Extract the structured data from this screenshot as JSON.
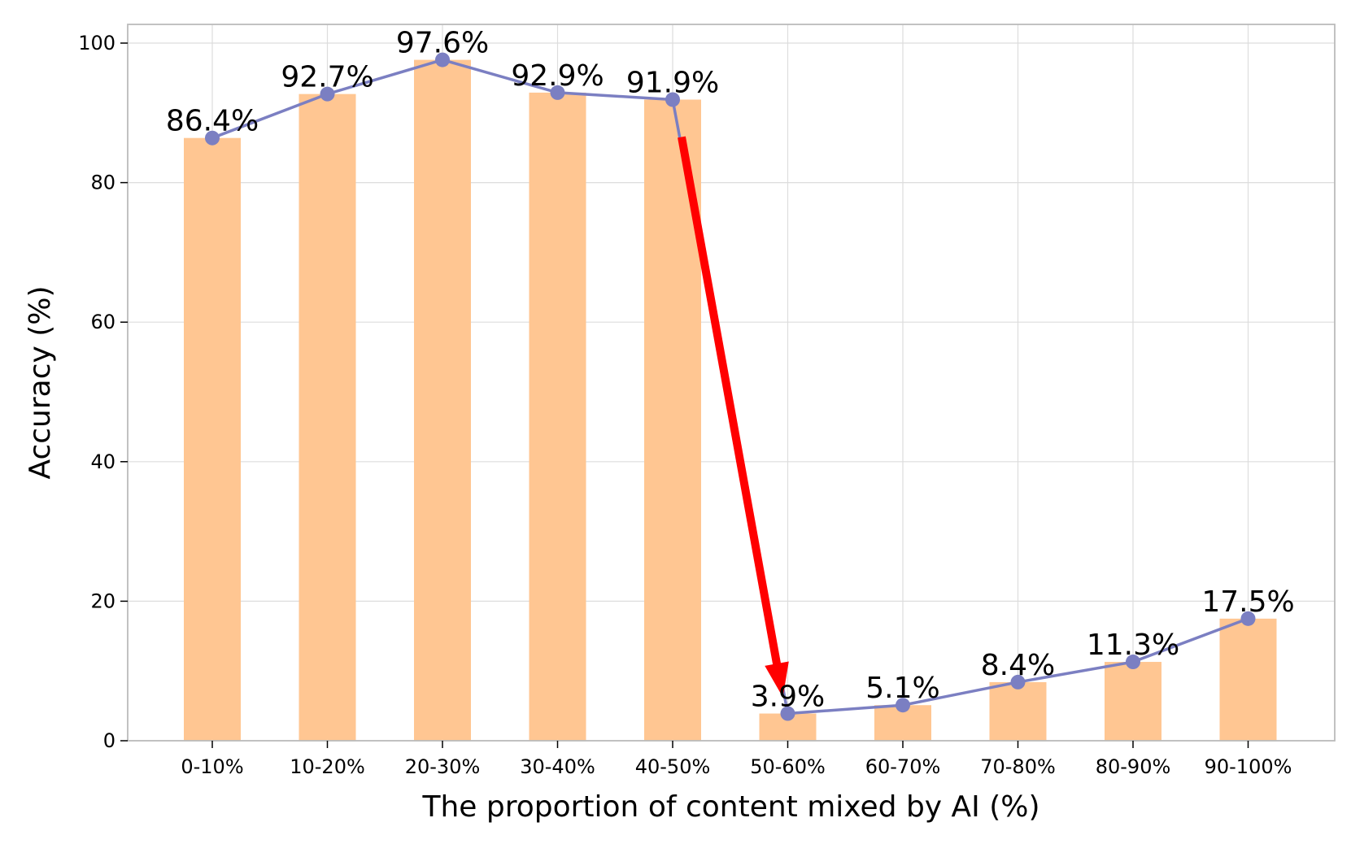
{
  "chart_data": {
    "type": "bar",
    "categories": [
      "0-10%",
      "10-20%",
      "20-30%",
      "30-40%",
      "40-50%",
      "50-60%",
      "60-70%",
      "70-80%",
      "80-90%",
      "90-100%"
    ],
    "series": [
      {
        "type": "bar",
        "values": [
          86.4,
          92.7,
          97.6,
          92.9,
          91.9,
          3.9,
          5.1,
          8.4,
          11.3,
          17.5
        ],
        "color": "#ffc692"
      },
      {
        "type": "line",
        "values": [
          86.4,
          92.7,
          97.6,
          92.9,
          91.9,
          3.9,
          5.1,
          8.4,
          11.3,
          17.5
        ],
        "color": "#7b7fc2"
      }
    ],
    "data_labels": [
      "86.4%",
      "92.7%",
      "97.6%",
      "92.9%",
      "91.9%",
      "3.9%",
      "5.1%",
      "8.4%",
      "11.3%",
      "17.5%"
    ],
    "annotation": {
      "type": "arrow",
      "from_category": "40-50%",
      "to_category": "50-60%",
      "color": "#ff0000"
    },
    "xlabel": "The proportion of content mixed by AI (%)",
    "ylabel": "Accuracy (%)",
    "ylim": [
      0,
      100
    ],
    "yticks": [
      0,
      20,
      40,
      60,
      80,
      100
    ],
    "grid": true,
    "grid_color": "#dddddd",
    "spine_color": "#bbbbbb"
  }
}
